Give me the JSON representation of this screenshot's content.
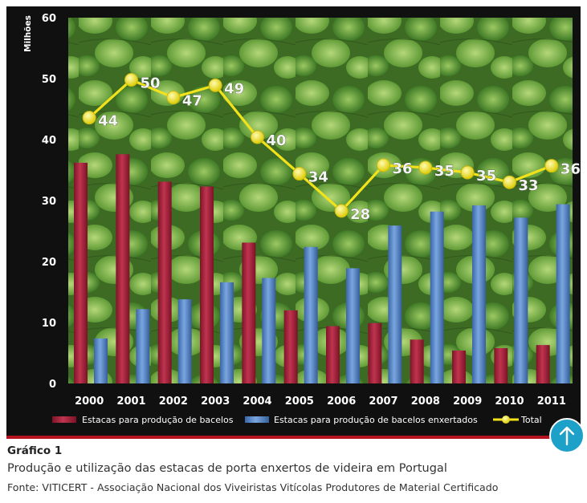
{
  "chart_data": {
    "type": "bar",
    "ylabel": "Milhões",
    "ylim": [
      0,
      60
    ],
    "yticks": [
      "0",
      "10",
      "20",
      "30",
      "40",
      "50",
      "60"
    ],
    "categories": [
      "2000",
      "2001",
      "2002",
      "2003",
      "2004",
      "2005",
      "2006",
      "2007",
      "2008",
      "2009",
      "2010",
      "2011"
    ],
    "series": [
      {
        "name": "Estacas para produção de bacelos",
        "type": "bar",
        "color": "#a3223a",
        "values": [
          36.2,
          37.6,
          33.1,
          32.3,
          23.1,
          12.0,
          9.4,
          9.9,
          7.2,
          5.4,
          5.8,
          6.3
        ]
      },
      {
        "name": "Estacas para produção de bacelos enxertados",
        "type": "bar",
        "color": "#4f7fc4",
        "values": [
          7.4,
          12.2,
          13.8,
          16.6,
          17.3,
          22.4,
          18.9,
          25.9,
          28.2,
          29.2,
          27.2,
          29.4
        ]
      },
      {
        "name": "Total",
        "type": "line",
        "color": "#f2e21a",
        "values": [
          43.6,
          49.8,
          46.9,
          48.9,
          40.4,
          34.4,
          28.3,
          35.8,
          35.4,
          34.6,
          33.0,
          35.7
        ],
        "labels": [
          "44",
          "50",
          "47",
          "49",
          "40",
          "34",
          "28",
          "36",
          "35",
          "35",
          "33",
          "36"
        ]
      }
    ],
    "legend_position": "bottom"
  },
  "caption": {
    "label": "Gráfico 1",
    "title": "Produção e utilização das estacas de porta enxertos de videira em Portugal",
    "source": "Fonte: VITICERT - Associação Nacional dos Viveiristas Vitícolas Produtores de Material Certificado"
  },
  "colors": {
    "frame": "#101010",
    "accent_rule": "#b3141d",
    "button": "#1da1c9"
  },
  "icons": {
    "up_button": "arrow-up-icon"
  }
}
